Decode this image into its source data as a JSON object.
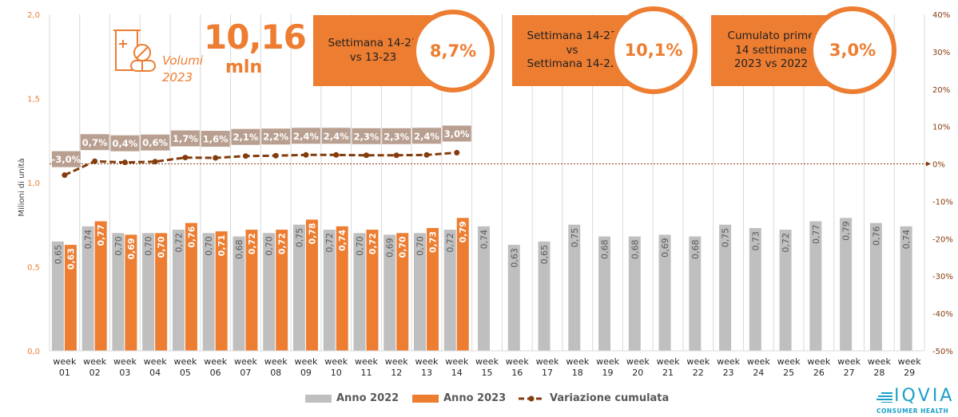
{
  "header": {
    "volume_value": "10,16",
    "volume_unit": "mln",
    "volume_label_line1": "Volumi",
    "volume_label_line2": "2023",
    "volume_icon": "medicine-bottle-pills-icon"
  },
  "kpis": [
    {
      "label_lines": [
        "Settimana 14-23",
        "vs 13-23"
      ],
      "value": "8,7%"
    },
    {
      "label_lines": [
        "Settimana 14-23",
        "vs",
        "Settimana 14-22"
      ],
      "value": "10,1%"
    },
    {
      "label_lines": [
        "Cumulato prime",
        "14 settimane",
        "2023 vs 2022"
      ],
      "value": "3,0%"
    }
  ],
  "legend": {
    "items": [
      {
        "label": "Anno 2022",
        "color": "#BFBFBF"
      },
      {
        "label": "Anno 2023",
        "color": "#ED7D31"
      },
      {
        "label": "Variazione cumulata",
        "color": "#843C0C"
      }
    ]
  },
  "logo": {
    "name": "IQVIA",
    "subtitle": "CONSUMER HEALTH"
  },
  "colors": {
    "accent": "#ED7D31",
    "gray": "#BFBFBF",
    "line": "#843C0C",
    "label_box": "#B59A8A"
  },
  "chart_data": {
    "type": "bar",
    "title": "",
    "xlabel": "",
    "ylabel": "Milioni di unità",
    "y2label": "",
    "categories": [
      "week\n01",
      "week\n02",
      "week\n03",
      "week\n04",
      "week\n05",
      "week\n06",
      "week\n07",
      "week\n08",
      "week\n09",
      "week\n10",
      "week\n11",
      "week\n12",
      "week\n13",
      "week\n14",
      "week\n15",
      "week\n16",
      "week\n17",
      "week\n18",
      "week\n19",
      "week\n20",
      "week\n21",
      "week\n22",
      "week\n23",
      "week\n24",
      "week\n25",
      "week\n26",
      "week\n27",
      "week\n28",
      "week\n29"
    ],
    "ylim": [
      0,
      2.0
    ],
    "yticks": [
      "0,0",
      "0,5",
      "1,0",
      "1,5",
      "2,0"
    ],
    "y2lim": [
      -0.5,
      0.4
    ],
    "y2ticks": [
      "-50%",
      "-40%",
      "-30%",
      "-20%",
      "-10%",
      "0%",
      "10%",
      "20%",
      "30%",
      "40%"
    ],
    "grid": "vertical",
    "legend_position": "bottom",
    "series": [
      {
        "name": "Anno 2022",
        "type": "bar",
        "axis": "left",
        "values": [
          0.65,
          0.74,
          0.7,
          0.7,
          0.72,
          0.7,
          0.68,
          0.7,
          0.75,
          0.72,
          0.7,
          0.69,
          0.7,
          0.72,
          0.74,
          0.63,
          0.65,
          0.75,
          0.68,
          0.68,
          0.69,
          0.68,
          0.75,
          0.73,
          0.72,
          0.77,
          0.79,
          0.76,
          0.74
        ],
        "labels": [
          "0,65",
          "0,74",
          "0,70",
          "0,70",
          "0,72",
          "0,70",
          "0,68",
          "0,70",
          "0,75",
          "0,72",
          "0,70",
          "0,69",
          "0,70",
          "0,72",
          "0,74",
          "0,63",
          "0,65",
          "0,75",
          "0,68",
          "0,68",
          "0,69",
          "0,68",
          "0,75",
          "0,73",
          "0,72",
          "0,77",
          "0,79",
          "0,76",
          "0,74"
        ]
      },
      {
        "name": "Anno 2023",
        "type": "bar",
        "axis": "left",
        "values": [
          0.63,
          0.77,
          0.69,
          0.7,
          0.76,
          0.71,
          0.72,
          0.72,
          0.78,
          0.74,
          0.72,
          0.7,
          0.73,
          0.79
        ],
        "labels": [
          "0,63",
          "0,77",
          "0,69",
          "0,70",
          "0,76",
          "0,71",
          "0,72",
          "0,72",
          "0,78",
          "0,74",
          "0,72",
          "0,70",
          "0,73",
          "0,79"
        ]
      },
      {
        "name": "Variazione cumulata",
        "type": "line",
        "axis": "right",
        "values": [
          -0.03,
          0.007,
          0.004,
          0.006,
          0.017,
          0.016,
          0.021,
          0.022,
          0.024,
          0.024,
          0.023,
          0.023,
          0.024,
          0.03
        ],
        "labels": [
          "-3,0%",
          "0,7%",
          "0,4%",
          "0,6%",
          "1,7%",
          "1,6%",
          "2,1%",
          "2,2%",
          "2,4%",
          "2,4%",
          "2,3%",
          "2,3%",
          "2,4%",
          "3,0%"
        ]
      }
    ],
    "reference_line": {
      "axis": "right",
      "value": 0
    }
  }
}
